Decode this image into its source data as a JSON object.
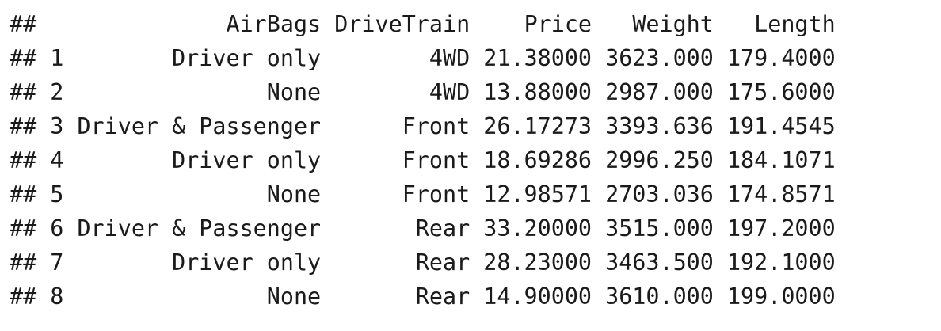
{
  "prefix": "##",
  "columns": [
    "AirBags",
    "DriveTrain",
    "Price",
    "Weight",
    "Length"
  ],
  "rows": [
    {
      "id": "1",
      "AirBags": "Driver only",
      "DriveTrain": "4WD",
      "Price": "21.38000",
      "Weight": "3623.000",
      "Length": "179.4000"
    },
    {
      "id": "2",
      "AirBags": "None",
      "DriveTrain": "4WD",
      "Price": "13.88000",
      "Weight": "2987.000",
      "Length": "175.6000"
    },
    {
      "id": "3",
      "AirBags": "Driver & Passenger",
      "DriveTrain": "Front",
      "Price": "26.17273",
      "Weight": "3393.636",
      "Length": "191.4545"
    },
    {
      "id": "4",
      "AirBags": "Driver only",
      "DriveTrain": "Front",
      "Price": "18.69286",
      "Weight": "2996.250",
      "Length": "184.1071"
    },
    {
      "id": "5",
      "AirBags": "None",
      "DriveTrain": "Front",
      "Price": "12.98571",
      "Weight": "2703.036",
      "Length": "174.8571"
    },
    {
      "id": "6",
      "AirBags": "Driver & Passenger",
      "DriveTrain": "Rear",
      "Price": "33.20000",
      "Weight": "3515.000",
      "Length": "197.2000"
    },
    {
      "id": "7",
      "AirBags": "Driver only",
      "DriveTrain": "Rear",
      "Price": "28.23000",
      "Weight": "3463.500",
      "Length": "192.1000"
    },
    {
      "id": "8",
      "AirBags": "None",
      "DriveTrain": "Rear",
      "Price": "14.90000",
      "Weight": "3610.000",
      "Length": "199.0000"
    }
  ]
}
